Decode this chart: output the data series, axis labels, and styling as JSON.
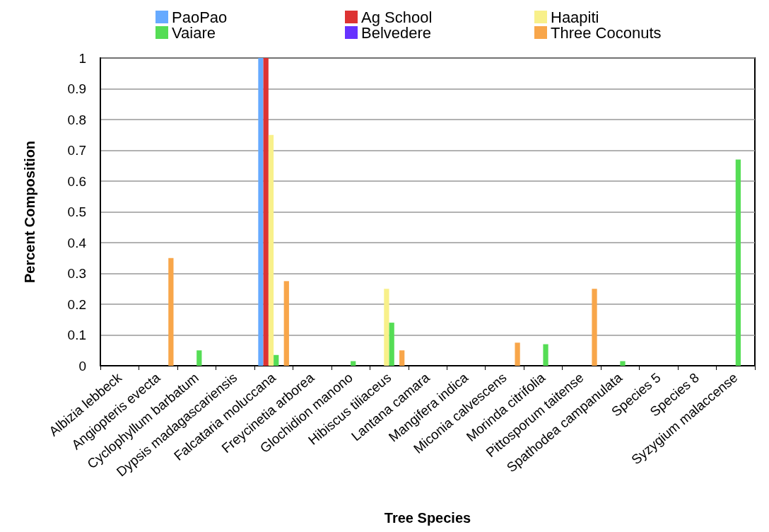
{
  "chart_data": {
    "type": "bar",
    "xlabel": "Tree Species",
    "ylabel": "Percent Composition",
    "categories": [
      "Albizia lebbeck",
      "Angiopteris evecta",
      "Cyclophyllum barbatum",
      "Dypsis madagascariensis",
      "Falcataria moluccana",
      "Freycinetia arborea",
      "Glochidion manono",
      "Hibiscus tiliaceus",
      "Lantana camara",
      "Mangifera indica",
      "Miconia calvescens",
      "Morinda citrifolia",
      "Pittosporum taitense",
      "Spathodea campanulata",
      "Species 5",
      "Species 8",
      "Syzygium malaccense"
    ],
    "series": [
      {
        "name": "PaoPao",
        "color": "#66aaff",
        "values": [
          0,
          0,
          0,
          0,
          1,
          0,
          0,
          0,
          0,
          0,
          0,
          0,
          0,
          0,
          0,
          0,
          0
        ]
      },
      {
        "name": "Ag School",
        "color": "#dd3333",
        "values": [
          0,
          0,
          0,
          0,
          1,
          0,
          0,
          0,
          0,
          0,
          0,
          0,
          0,
          0,
          0,
          0,
          0
        ]
      },
      {
        "name": "Haapiti",
        "color": "#f8f08a",
        "values": [
          0,
          0,
          0,
          0,
          0.75,
          0,
          0,
          0.25,
          0,
          0,
          0,
          0,
          0,
          0,
          0,
          0,
          0
        ]
      },
      {
        "name": "Vaiare",
        "color": "#55dd55",
        "values": [
          0,
          0,
          0.05,
          0,
          0.035,
          0,
          0.015,
          0.14,
          0,
          0,
          0,
          0.07,
          0,
          0.015,
          0,
          0,
          0.67
        ]
      },
      {
        "name": "Belvedere",
        "color": "#6633ff",
        "values": [
          0,
          0,
          0,
          0,
          0,
          0,
          0,
          0,
          0,
          0,
          0,
          0,
          0,
          0,
          0,
          0,
          0
        ]
      },
      {
        "name": "Three Coconuts",
        "color": "#f8a64a",
        "values": [
          0,
          0.35,
          0,
          0,
          0.275,
          0,
          0,
          0.05,
          0,
          0,
          0.075,
          0,
          0.25,
          0,
          0,
          0,
          0
        ]
      }
    ],
    "ylim": [
      0,
      1
    ],
    "yticks": [
      0,
      0.1,
      0.2,
      0.3,
      0.4,
      0.5,
      0.6,
      0.7,
      0.8,
      0.9,
      1
    ],
    "grid": "y",
    "legend": "top"
  }
}
